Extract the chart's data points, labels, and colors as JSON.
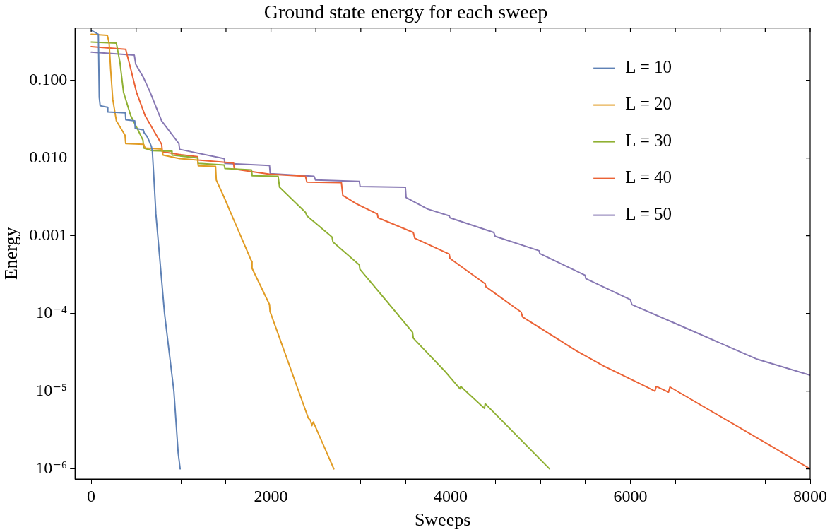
{
  "chart_data": {
    "type": "line",
    "title": "Ground state energy for each sweep",
    "xlabel": "Sweeps",
    "ylabel": "Energy",
    "log": "y",
    "grid": false,
    "legend": "top right",
    "marker": "none",
    "line_style": "solid",
    "xlim": [
      -180,
      8000
    ],
    "xticks": [
      0,
      {
        "value": 500,
        "label": null
      },
      {
        "value": 1000,
        "label": null
      },
      {
        "value": 1500,
        "label": null
      },
      2000,
      {
        "value": 2500,
        "label": null
      },
      {
        "value": 3000,
        "label": null
      },
      {
        "value": 3500,
        "label": null
      },
      4000,
      {
        "value": 4500,
        "label": null
      },
      {
        "value": 5000,
        "label": null
      },
      {
        "value": 5500,
        "label": null
      },
      6000,
      {
        "value": 6500,
        "label": null
      },
      {
        "value": 7000,
        "label": null
      },
      {
        "value": 7500,
        "label": null
      },
      8000
    ],
    "ylim": [
      7.4e-07,
      0.47
    ],
    "yticks": [
      {
        "value": 1e-06,
        "label": "10⁻⁶"
      },
      {
        "value": 1e-05,
        "label": "10⁻⁵"
      },
      {
        "value": 0.0001,
        "label": "10⁻⁴"
      },
      {
        "value": 0.001,
        "label": "0.001"
      },
      {
        "value": 0.01,
        "label": "0.010"
      },
      {
        "value": 0.1,
        "label": "0.100"
      }
    ],
    "series": [
      {
        "name": "L = 10",
        "color": "#5e81b5",
        "x": [
          0,
          80,
          90,
          100,
          180,
          185,
          380,
          385,
          485,
          490,
          580,
          590,
          620,
          640,
          670,
          680,
          700,
          720,
          816,
          920,
          968,
          990
        ],
        "values": [
          0.44,
          0.39,
          0.06,
          0.047,
          0.045,
          0.039,
          0.038,
          0.031,
          0.03,
          0.024,
          0.023,
          0.021,
          0.019,
          0.017,
          0.014,
          0.0124,
          0.005,
          0.0019,
          0.0001,
          1e-05,
          1.6e-06,
          1e-06
        ]
      },
      {
        "name": "L = 20",
        "color": "#e19c24",
        "x": [
          0,
          180,
          200,
          216,
          240,
          280,
          376,
          384,
          584,
          600,
          784,
          800,
          984,
          1184,
          1192,
          1384,
          1392,
          1480,
          1576,
          1784,
          1790,
          1984,
          1990,
          2416,
          2440,
          2456,
          2472,
          2700
        ],
        "values": [
          0.39,
          0.378,
          0.3,
          0.14,
          0.057,
          0.03,
          0.0197,
          0.0153,
          0.015,
          0.0134,
          0.013,
          0.0109,
          0.0098,
          0.0094,
          0.0079,
          0.0078,
          0.0052,
          0.0031,
          0.0017,
          0.00047,
          0.00038,
          0.00013,
          0.000106,
          4.5e-06,
          4.2e-06,
          3.6e-06,
          4e-06,
          1e-06
        ]
      },
      {
        "name": "L = 30",
        "color": "#8fb032",
        "x": [
          0,
          280,
          320,
          360,
          440,
          520,
          576,
          584,
          680,
          896,
          900,
          1184,
          1190,
          1480,
          1488,
          1784,
          1792,
          2080,
          2096,
          2384,
          2400,
          2680,
          2690,
          2984,
          2990,
          3296,
          3576,
          3584,
          3936,
          4104,
          4112,
          4376,
          4384,
          5100
        ],
        "values": [
          0.31,
          0.3,
          0.17,
          0.07,
          0.035,
          0.023,
          0.017,
          0.0134,
          0.0124,
          0.0122,
          0.0109,
          0.01,
          0.0085,
          0.0081,
          0.0073,
          0.007,
          0.0059,
          0.0058,
          0.0042,
          0.002,
          0.0018,
          0.00096,
          0.00083,
          0.00042,
          0.00037,
          0.00014,
          5.7e-05,
          4.8e-05,
          1.8e-05,
          1.07e-05,
          1.15e-05,
          6e-06,
          6.9e-06,
          1e-06
        ]
      },
      {
        "name": "L = 40",
        "color": "#eb6235",
        "x": [
          0,
          384,
          440,
          504,
          600,
          784,
          792,
          1000,
          1184,
          1190,
          1584,
          1592,
          1984,
          2384,
          2400,
          2784,
          2800,
          2944,
          3184,
          3192,
          3584,
          3600,
          3984,
          3992,
          4384,
          4392,
          4784,
          4800,
          5400,
          5704,
          6168,
          6272,
          6288,
          6424,
          6440,
          8000
        ],
        "values": [
          0.27,
          0.25,
          0.14,
          0.07,
          0.035,
          0.015,
          0.012,
          0.011,
          0.0104,
          0.0094,
          0.0086,
          0.0072,
          0.0062,
          0.0058,
          0.0049,
          0.0048,
          0.0033,
          0.0026,
          0.0019,
          0.0017,
          0.0011,
          0.00093,
          0.00058,
          0.00051,
          0.00024,
          0.00022,
          0.000104,
          9e-05,
          3.3e-05,
          2.1e-05,
          1.15e-05,
          1e-05,
          1.15e-05,
          9.7e-06,
          1.13e-05,
          1e-06
        ]
      },
      {
        "name": "L = 50",
        "color": "#8778b3",
        "x": [
          0,
          480,
          496,
          584,
          656,
          784,
          976,
          984,
          1480,
          1488,
          1984,
          1992,
          2480,
          2496,
          2984,
          2992,
          3496,
          3504,
          3744,
          3984,
          3992,
          4480,
          4496,
          4984,
          4992,
          5496,
          5504,
          6000,
          6016,
          6504,
          7400,
          8000
        ],
        "values": [
          0.23,
          0.21,
          0.16,
          0.107,
          0.07,
          0.03,
          0.0153,
          0.0129,
          0.0098,
          0.0085,
          0.008,
          0.0063,
          0.0058,
          0.0052,
          0.005,
          0.0043,
          0.0042,
          0.0031,
          0.0022,
          0.0018,
          0.0017,
          0.0011,
          0.00098,
          0.00064,
          0.00059,
          0.00031,
          0.00028,
          0.00015,
          0.00013,
          7.4e-05,
          2.6e-05,
          1.6e-05
        ]
      }
    ]
  }
}
